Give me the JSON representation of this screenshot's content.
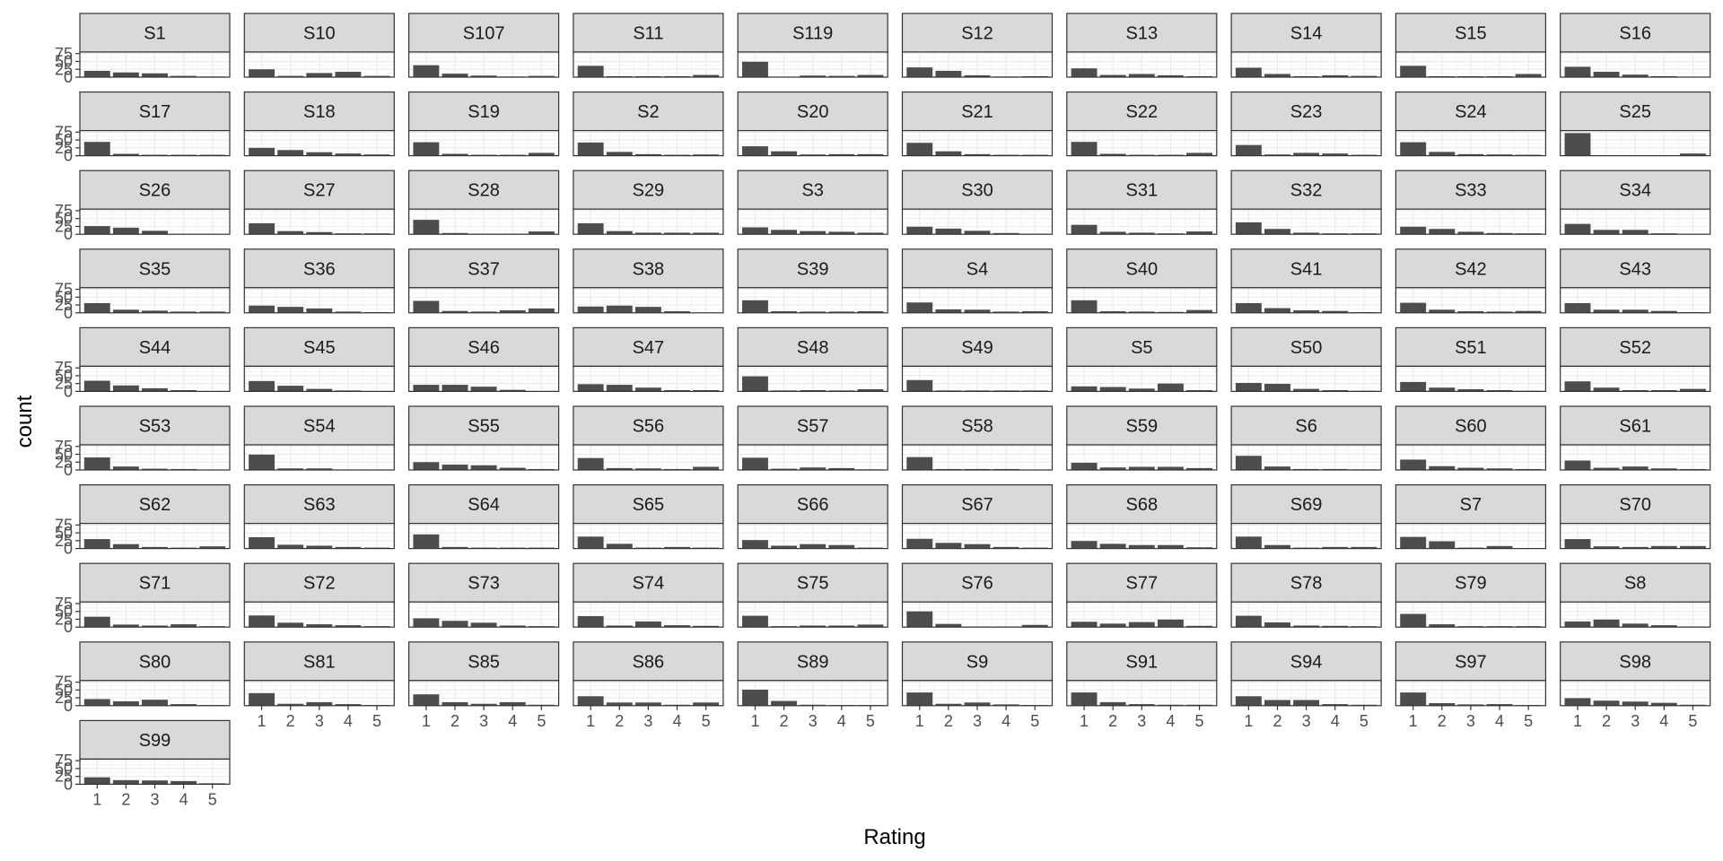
{
  "chart_data": {
    "type": "bar",
    "layout": "faceted small multiples, 10 columns",
    "xlabel": "Rating",
    "ylabel": "count",
    "x_ticks": [
      1,
      2,
      3,
      4,
      5
    ],
    "y_ticks": [
      0,
      25,
      50,
      75
    ],
    "ylim": [
      0,
      80
    ],
    "grid": true,
    "colors": {
      "bar": "#4d4d4d",
      "strip_fill": "#d9d9d9",
      "panel_border": "#333333",
      "grid_major": "#ebebeb",
      "grid_minor": "#f5f5f5"
    },
    "facets": [
      {
        "name": "S1",
        "values": [
          20,
          15,
          12,
          4,
          2
        ]
      },
      {
        "name": "S10",
        "values": [
          25,
          4,
          13,
          17,
          4
        ]
      },
      {
        "name": "S107",
        "values": [
          38,
          11,
          5,
          2,
          4
        ]
      },
      {
        "name": "S11",
        "values": [
          36,
          3,
          3,
          3,
          7
        ]
      },
      {
        "name": "S119",
        "values": [
          49,
          0,
          5,
          4,
          7
        ]
      },
      {
        "name": "S12",
        "values": [
          31,
          20,
          6,
          2,
          3
        ]
      },
      {
        "name": "S13",
        "values": [
          28,
          7,
          10,
          6,
          3
        ]
      },
      {
        "name": "S14",
        "values": [
          30,
          10,
          3,
          6,
          4
        ]
      },
      {
        "name": "S15",
        "values": [
          36,
          3,
          3,
          3,
          10
        ]
      },
      {
        "name": "S16",
        "values": [
          33,
          17,
          8,
          3,
          0
        ]
      },
      {
        "name": "S17",
        "values": [
          44,
          6,
          3,
          3,
          3
        ]
      },
      {
        "name": "S18",
        "values": [
          25,
          18,
          11,
          7,
          4
        ]
      },
      {
        "name": "S19",
        "values": [
          43,
          6,
          3,
          3,
          9
        ]
      },
      {
        "name": "S2",
        "values": [
          42,
          12,
          5,
          3,
          4
        ]
      },
      {
        "name": "S20",
        "values": [
          30,
          14,
          4,
          5,
          5
        ]
      },
      {
        "name": "S21",
        "values": [
          41,
          14,
          5,
          3,
          3
        ]
      },
      {
        "name": "S22",
        "values": [
          44,
          6,
          3,
          3,
          9
        ]
      },
      {
        "name": "S23",
        "values": [
          34,
          4,
          9,
          7,
          3
        ]
      },
      {
        "name": "S24",
        "values": [
          43,
          12,
          5,
          4,
          3
        ]
      },
      {
        "name": "S25",
        "values": [
          72,
          0,
          0,
          0,
          7
        ]
      },
      {
        "name": "S26",
        "values": [
          26,
          21,
          11,
          1,
          0
        ]
      },
      {
        "name": "S27",
        "values": [
          35,
          10,
          7,
          3,
          3
        ]
      },
      {
        "name": "S28",
        "values": [
          46,
          4,
          2,
          2,
          9
        ]
      },
      {
        "name": "S29",
        "values": [
          35,
          10,
          5,
          5,
          5
        ]
      },
      {
        "name": "S3",
        "values": [
          22,
          14,
          10,
          8,
          5
        ]
      },
      {
        "name": "S30",
        "values": [
          24,
          18,
          11,
          4,
          2
        ]
      },
      {
        "name": "S31",
        "values": [
          30,
          8,
          5,
          3,
          9
        ]
      },
      {
        "name": "S32",
        "values": [
          38,
          17,
          5,
          3,
          3
        ]
      },
      {
        "name": "S33",
        "values": [
          24,
          17,
          8,
          4,
          3
        ]
      },
      {
        "name": "S34",
        "values": [
          33,
          14,
          14,
          3,
          0
        ]
      },
      {
        "name": "S35",
        "values": [
          31,
          10,
          7,
          4,
          4
        ]
      },
      {
        "name": "S36",
        "values": [
          23,
          19,
          14,
          4,
          2
        ]
      },
      {
        "name": "S37",
        "values": [
          38,
          6,
          4,
          8,
          14
        ]
      },
      {
        "name": "S38",
        "values": [
          20,
          23,
          19,
          5,
          0
        ]
      },
      {
        "name": "S39",
        "values": [
          40,
          5,
          4,
          4,
          5
        ]
      },
      {
        "name": "S4",
        "values": [
          33,
          11,
          10,
          4,
          5
        ]
      },
      {
        "name": "S40",
        "values": [
          40,
          5,
          4,
          3,
          9
        ]
      },
      {
        "name": "S41",
        "values": [
          31,
          15,
          8,
          6,
          2
        ]
      },
      {
        "name": "S42",
        "values": [
          32,
          10,
          5,
          4,
          6
        ]
      },
      {
        "name": "S43",
        "values": [
          31,
          10,
          10,
          6,
          2
        ]
      },
      {
        "name": "S44",
        "values": [
          34,
          19,
          10,
          4,
          0
        ]
      },
      {
        "name": "S45",
        "values": [
          33,
          18,
          8,
          3,
          1
        ]
      },
      {
        "name": "S46",
        "values": [
          21,
          21,
          15,
          5,
          0
        ]
      },
      {
        "name": "S47",
        "values": [
          23,
          21,
          12,
          4,
          4
        ]
      },
      {
        "name": "S48",
        "values": [
          48,
          3,
          4,
          3,
          7
        ]
      },
      {
        "name": "S49",
        "values": [
          36,
          3,
          3,
          3,
          3
        ]
      },
      {
        "name": "S5",
        "values": [
          16,
          14,
          9,
          25,
          4
        ]
      },
      {
        "name": "S50",
        "values": [
          27,
          24,
          8,
          4,
          2
        ]
      },
      {
        "name": "S51",
        "values": [
          30,
          12,
          7,
          4,
          2
        ]
      },
      {
        "name": "S52",
        "values": [
          32,
          12,
          4,
          4,
          8
        ]
      },
      {
        "name": "S53",
        "values": [
          40,
          11,
          4,
          3,
          1
        ]
      },
      {
        "name": "S54",
        "values": [
          49,
          5,
          5,
          0,
          0
        ]
      },
      {
        "name": "S55",
        "values": [
          25,
          17,
          15,
          7,
          3
        ]
      },
      {
        "name": "S56",
        "values": [
          38,
          6,
          5,
          3,
          10
        ]
      },
      {
        "name": "S57",
        "values": [
          39,
          4,
          8,
          6,
          2
        ]
      },
      {
        "name": "S58",
        "values": [
          41,
          3,
          3,
          3,
          1
        ]
      },
      {
        "name": "S59",
        "values": [
          23,
          8,
          10,
          10,
          6
        ]
      },
      {
        "name": "S6",
        "values": [
          45,
          11,
          3,
          3,
          2
        ]
      },
      {
        "name": "S60",
        "values": [
          33,
          12,
          7,
          5,
          3
        ]
      },
      {
        "name": "S61",
        "values": [
          30,
          7,
          11,
          5,
          3
        ]
      },
      {
        "name": "S62",
        "values": [
          30,
          14,
          5,
          3,
          7
        ]
      },
      {
        "name": "S63",
        "values": [
          36,
          12,
          9,
          5,
          3
        ]
      },
      {
        "name": "S64",
        "values": [
          45,
          5,
          3,
          3,
          3
        ]
      },
      {
        "name": "S65",
        "values": [
          38,
          15,
          3,
          5,
          3
        ]
      },
      {
        "name": "S66",
        "values": [
          27,
          9,
          14,
          11,
          3
        ]
      },
      {
        "name": "S67",
        "values": [
          31,
          18,
          14,
          5,
          3
        ]
      },
      {
        "name": "S68",
        "values": [
          24,
          15,
          11,
          11,
          4
        ]
      },
      {
        "name": "S69",
        "values": [
          38,
          11,
          3,
          5,
          5
        ]
      },
      {
        "name": "S7",
        "values": [
          37,
          23,
          3,
          8,
          0
        ]
      },
      {
        "name": "S70",
        "values": [
          30,
          7,
          5,
          8,
          8
        ]
      },
      {
        "name": "S71",
        "values": [
          33,
          8,
          5,
          9,
          3
        ]
      },
      {
        "name": "S72",
        "values": [
          37,
          14,
          9,
          6,
          3
        ]
      },
      {
        "name": "S73",
        "values": [
          28,
          20,
          14,
          5,
          3
        ]
      },
      {
        "name": "S74",
        "values": [
          35,
          5,
          18,
          6,
          4
        ]
      },
      {
        "name": "S75",
        "values": [
          36,
          3,
          5,
          5,
          8
        ]
      },
      {
        "name": "S76",
        "values": [
          50,
          10,
          2,
          2,
          7
        ]
      },
      {
        "name": "S77",
        "values": [
          17,
          11,
          16,
          24,
          4
        ]
      },
      {
        "name": "S78",
        "values": [
          36,
          15,
          5,
          4,
          3
        ]
      },
      {
        "name": "S79",
        "values": [
          42,
          9,
          3,
          3,
          3
        ]
      },
      {
        "name": "S8",
        "values": [
          18,
          24,
          11,
          6,
          2
        ]
      },
      {
        "name": "S80",
        "values": [
          21,
          14,
          19,
          5,
          2
        ]
      },
      {
        "name": "S81",
        "values": [
          40,
          6,
          11,
          5,
          2
        ]
      },
      {
        "name": "S85",
        "values": [
          36,
          11,
          6,
          11,
          3
        ]
      },
      {
        "name": "S86",
        "values": [
          30,
          10,
          10,
          3,
          10
        ]
      },
      {
        "name": "S89",
        "values": [
          51,
          15,
          3,
          2,
          2
        ]
      },
      {
        "name": "S9",
        "values": [
          42,
          6,
          10,
          4,
          2
        ]
      },
      {
        "name": "S91",
        "values": [
          42,
          11,
          5,
          3,
          3
        ]
      },
      {
        "name": "S94",
        "values": [
          30,
          18,
          18,
          5,
          3
        ]
      },
      {
        "name": "S97",
        "values": [
          42,
          8,
          4,
          5,
          2
        ]
      },
      {
        "name": "S98",
        "values": [
          24,
          16,
          13,
          9,
          3
        ]
      },
      {
        "name": "S99",
        "values": [
          22,
          13,
          12,
          10,
          3
        ]
      }
    ]
  }
}
